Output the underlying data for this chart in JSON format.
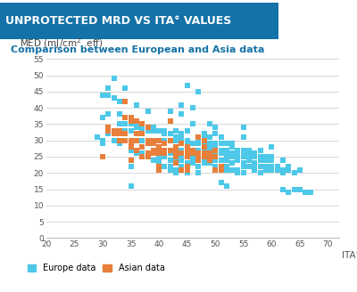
{
  "title": "UNPROTECTED MRD VS ITA° VALUES",
  "subtitle": "Comparison between European and Asia data",
  "ylabel_line1": "MED (mJ/cm",
  "ylabel_sup": "2",
  "ylabel_line2": " .eff)",
  "xlabel": "ITA°",
  "xlim": [
    20,
    72
  ],
  "ylim": [
    0,
    57
  ],
  "xticks": [
    20,
    25,
    30,
    35,
    40,
    45,
    50,
    55,
    60,
    65,
    70
  ],
  "yticks": [
    0,
    5,
    10,
    15,
    20,
    25,
    30,
    35,
    40,
    45,
    50,
    55
  ],
  "title_bg_color": "#1472a8",
  "title_text_color": "#ffffff",
  "subtitle_color": "#1472a8",
  "europe_color": "#4dc8e8",
  "asian_color": "#e87f3a",
  "grid_color": "#d0d0d0",
  "bg_color": "#f0f4f8",
  "europe_data": [
    [
      29,
      31
    ],
    [
      30,
      30
    ],
    [
      30,
      37
    ],
    [
      30,
      44
    ],
    [
      30,
      29
    ],
    [
      31,
      46
    ],
    [
      31,
      44
    ],
    [
      31,
      33
    ],
    [
      31,
      32
    ],
    [
      31,
      38
    ],
    [
      32,
      43
    ],
    [
      32,
      33
    ],
    [
      32,
      32
    ],
    [
      32,
      49
    ],
    [
      32,
      30
    ],
    [
      33,
      38
    ],
    [
      33,
      38
    ],
    [
      33,
      35
    ],
    [
      33,
      42
    ],
    [
      33,
      29
    ],
    [
      34,
      46
    ],
    [
      34,
      35
    ],
    [
      34,
      30
    ],
    [
      34,
      35
    ],
    [
      34,
      33
    ],
    [
      35,
      36
    ],
    [
      35,
      35
    ],
    [
      35,
      28
    ],
    [
      35,
      27
    ],
    [
      35,
      33
    ],
    [
      35,
      22
    ],
    [
      35,
      16
    ],
    [
      36,
      34
    ],
    [
      36,
      35
    ],
    [
      36,
      34
    ],
    [
      36,
      26
    ],
    [
      36,
      27
    ],
    [
      36,
      41
    ],
    [
      37,
      33
    ],
    [
      37,
      34
    ],
    [
      37,
      26
    ],
    [
      37,
      30
    ],
    [
      37,
      26
    ],
    [
      38,
      34
    ],
    [
      38,
      34
    ],
    [
      38,
      33
    ],
    [
      38,
      26
    ],
    [
      38,
      26
    ],
    [
      38,
      25
    ],
    [
      38,
      39
    ],
    [
      39,
      33
    ],
    [
      39,
      34
    ],
    [
      39,
      27
    ],
    [
      39,
      26
    ],
    [
      39,
      24
    ],
    [
      39,
      24
    ],
    [
      40,
      33
    ],
    [
      40,
      33
    ],
    [
      40,
      28
    ],
    [
      40,
      25
    ],
    [
      40,
      25
    ],
    [
      40,
      23
    ],
    [
      40,
      22
    ],
    [
      40,
      24
    ],
    [
      41,
      32
    ],
    [
      41,
      33
    ],
    [
      41,
      30
    ],
    [
      41,
      25
    ],
    [
      41,
      25
    ],
    [
      41,
      22
    ],
    [
      42,
      32
    ],
    [
      42,
      39
    ],
    [
      42,
      30
    ],
    [
      42,
      26
    ],
    [
      42,
      24
    ],
    [
      42,
      21
    ],
    [
      42,
      22
    ],
    [
      43,
      33
    ],
    [
      43,
      31
    ],
    [
      43,
      30
    ],
    [
      43,
      25
    ],
    [
      43,
      25
    ],
    [
      43,
      24
    ],
    [
      43,
      21
    ],
    [
      43,
      20
    ],
    [
      44,
      32
    ],
    [
      44,
      31
    ],
    [
      44,
      30
    ],
    [
      44,
      27
    ],
    [
      44,
      25
    ],
    [
      44,
      24
    ],
    [
      44,
      22
    ],
    [
      44,
      38
    ],
    [
      44,
      41
    ],
    [
      45,
      47
    ],
    [
      45,
      30
    ],
    [
      45,
      29
    ],
    [
      45,
      27
    ],
    [
      45,
      26
    ],
    [
      45,
      26
    ],
    [
      45,
      25
    ],
    [
      45,
      23
    ],
    [
      45,
      21
    ],
    [
      45,
      20
    ],
    [
      45,
      33
    ],
    [
      46,
      35
    ],
    [
      46,
      29
    ],
    [
      46,
      27
    ],
    [
      46,
      26
    ],
    [
      46,
      25
    ],
    [
      46,
      24
    ],
    [
      46,
      23
    ],
    [
      46,
      40
    ],
    [
      47,
      45
    ],
    [
      47,
      30
    ],
    [
      47,
      29
    ],
    [
      47,
      27
    ],
    [
      47,
      25
    ],
    [
      47,
      24
    ],
    [
      47,
      22
    ],
    [
      47,
      20
    ],
    [
      48,
      30
    ],
    [
      48,
      29
    ],
    [
      48,
      27
    ],
    [
      48,
      25
    ],
    [
      48,
      24
    ],
    [
      48,
      23
    ],
    [
      48,
      32
    ],
    [
      48,
      31
    ],
    [
      49,
      35
    ],
    [
      49,
      29
    ],
    [
      49,
      28
    ],
    [
      49,
      27
    ],
    [
      49,
      25
    ],
    [
      49,
      24
    ],
    [
      49,
      23
    ],
    [
      49,
      31
    ],
    [
      50,
      34
    ],
    [
      50,
      29
    ],
    [
      50,
      28
    ],
    [
      50,
      26
    ],
    [
      50,
      25
    ],
    [
      50,
      24
    ],
    [
      50,
      22
    ],
    [
      50,
      21
    ],
    [
      50,
      32
    ],
    [
      51,
      29
    ],
    [
      51,
      27
    ],
    [
      51,
      26
    ],
    [
      51,
      24
    ],
    [
      51,
      21
    ],
    [
      51,
      17
    ],
    [
      51,
      31
    ],
    [
      52,
      29
    ],
    [
      52,
      27
    ],
    [
      52,
      26
    ],
    [
      52,
      25
    ],
    [
      52,
      24
    ],
    [
      52,
      22
    ],
    [
      52,
      21
    ],
    [
      52,
      16
    ],
    [
      53,
      28
    ],
    [
      53,
      26
    ],
    [
      53,
      25
    ],
    [
      53,
      23
    ],
    [
      53,
      21
    ],
    [
      53,
      29
    ],
    [
      54,
      27
    ],
    [
      54,
      26
    ],
    [
      54,
      25
    ],
    [
      54,
      24
    ],
    [
      54,
      21
    ],
    [
      54,
      20
    ],
    [
      55,
      34
    ],
    [
      55,
      27
    ],
    [
      55,
      26
    ],
    [
      55,
      25
    ],
    [
      55,
      23
    ],
    [
      55,
      22
    ],
    [
      55,
      20
    ],
    [
      55,
      31
    ],
    [
      56,
      26
    ],
    [
      56,
      25
    ],
    [
      56,
      24
    ],
    [
      56,
      22
    ],
    [
      56,
      27
    ],
    [
      57,
      26
    ],
    [
      57,
      25
    ],
    [
      57,
      23
    ],
    [
      57,
      22
    ],
    [
      57,
      21
    ],
    [
      58,
      25
    ],
    [
      58,
      24
    ],
    [
      58,
      22
    ],
    [
      58,
      20
    ],
    [
      58,
      27
    ],
    [
      59,
      25
    ],
    [
      59,
      24
    ],
    [
      59,
      22
    ],
    [
      59,
      21
    ],
    [
      60,
      25
    ],
    [
      60,
      24
    ],
    [
      60,
      22
    ],
    [
      60,
      21
    ],
    [
      60,
      28
    ],
    [
      61,
      22
    ],
    [
      61,
      22
    ],
    [
      61,
      21
    ],
    [
      62,
      24
    ],
    [
      62,
      21
    ],
    [
      62,
      20
    ],
    [
      62,
      15
    ],
    [
      63,
      21
    ],
    [
      63,
      14
    ],
    [
      63,
      22
    ],
    [
      64,
      20
    ],
    [
      64,
      15
    ],
    [
      65,
      21
    ],
    [
      65,
      15
    ],
    [
      66,
      14
    ],
    [
      67,
      14
    ]
  ],
  "asian_data": [
    [
      30,
      25
    ],
    [
      31,
      33
    ],
    [
      31,
      34
    ],
    [
      32,
      33
    ],
    [
      32,
      32
    ],
    [
      33,
      33
    ],
    [
      33,
      32
    ],
    [
      33,
      30
    ],
    [
      34,
      42
    ],
    [
      34,
      37
    ],
    [
      34,
      32
    ],
    [
      34,
      30
    ],
    [
      35,
      37
    ],
    [
      35,
      36
    ],
    [
      35,
      30
    ],
    [
      35,
      29
    ],
    [
      35,
      28
    ],
    [
      35,
      24
    ],
    [
      36,
      36
    ],
    [
      36,
      32
    ],
    [
      36,
      30
    ],
    [
      36,
      27
    ],
    [
      37,
      35
    ],
    [
      37,
      32
    ],
    [
      37,
      28
    ],
    [
      37,
      25
    ],
    [
      38,
      34
    ],
    [
      38,
      30
    ],
    [
      38,
      29
    ],
    [
      38,
      26
    ],
    [
      38,
      25
    ],
    [
      39,
      30
    ],
    [
      39,
      29
    ],
    [
      39,
      27
    ],
    [
      39,
      26
    ],
    [
      40,
      30
    ],
    [
      40,
      28
    ],
    [
      40,
      27
    ],
    [
      40,
      26
    ],
    [
      40,
      22
    ],
    [
      40,
      21
    ],
    [
      41,
      29
    ],
    [
      41,
      27
    ],
    [
      41,
      26
    ],
    [
      42,
      36
    ],
    [
      42,
      30
    ],
    [
      42,
      27
    ],
    [
      43,
      28
    ],
    [
      43,
      27
    ],
    [
      43,
      26
    ],
    [
      43,
      25
    ],
    [
      43,
      23
    ],
    [
      44,
      29
    ],
    [
      44,
      26
    ],
    [
      44,
      21
    ],
    [
      45,
      28
    ],
    [
      45,
      27
    ],
    [
      45,
      26
    ],
    [
      45,
      26
    ],
    [
      45,
      25
    ],
    [
      45,
      22
    ],
    [
      45,
      21
    ],
    [
      46,
      27
    ],
    [
      46,
      26
    ],
    [
      47,
      26
    ],
    [
      47,
      25
    ],
    [
      47,
      24
    ],
    [
      47,
      31
    ],
    [
      48,
      30
    ],
    [
      48,
      28
    ],
    [
      48,
      26
    ],
    [
      48,
      25
    ],
    [
      49,
      26
    ],
    [
      49,
      25
    ],
    [
      49,
      24
    ],
    [
      50,
      27
    ],
    [
      50,
      25
    ],
    [
      50,
      21
    ],
    [
      51,
      22
    ],
    [
      51,
      21
    ]
  ],
  "marker_size": 18,
  "title_fontsize": 9,
  "subtitle_fontsize": 8,
  "ylabel_fontsize": 7.5,
  "tick_fontsize": 6.5,
  "legend_fontsize": 7
}
